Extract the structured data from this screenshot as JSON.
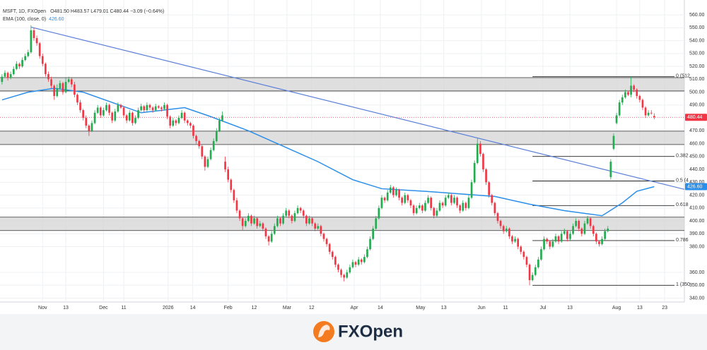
{
  "chart_data": {
    "type": "candlestick",
    "title": "MSFT, 1D, FXOpen",
    "ohlc_text": "O481.50  H483.57  L479.01  C480.44  −3.09 (−0.64%)",
    "up_color": "#22ab4f",
    "down_color": "#f23645",
    "open": [
      508,
      512,
      515,
      511,
      514,
      518,
      522,
      520,
      525,
      528,
      531,
      548,
      542,
      538,
      528,
      522,
      514,
      510,
      505,
      497,
      503,
      507,
      500,
      508,
      510,
      506,
      498,
      492,
      486,
      480,
      474,
      470,
      476,
      484,
      488,
      482,
      486,
      490,
      484,
      478,
      485,
      490,
      488,
      482,
      478,
      484,
      476,
      480,
      486,
      489,
      486,
      490,
      488,
      486,
      489,
      488,
      487,
      490,
      481,
      474,
      478,
      476,
      480,
      484,
      478,
      476,
      474,
      466,
      462,
      458,
      450,
      442,
      448,
      455,
      462,
      470,
      478,
      446,
      440,
      432,
      424,
      416,
      408,
      402,
      396,
      400,
      404,
      398,
      402,
      396,
      398,
      394,
      388,
      384,
      390,
      396,
      402,
      398,
      404,
      408,
      404,
      400,
      406,
      410,
      408,
      404,
      398,
      402,
      398,
      394,
      396,
      390,
      386,
      382,
      376,
      372,
      366,
      362,
      358,
      356,
      360,
      364,
      368,
      366,
      370,
      368,
      372,
      378,
      386,
      394,
      402,
      410,
      418,
      416,
      422,
      426,
      420,
      424,
      418,
      414,
      420,
      416,
      412,
      406,
      410,
      412,
      408,
      414,
      418,
      410,
      404,
      408,
      414,
      412,
      418,
      420,
      414,
      418,
      412,
      408,
      414,
      410,
      418,
      430,
      445,
      460,
      452,
      440,
      430,
      420,
      414,
      406,
      400,
      396,
      392,
      394,
      388,
      384,
      386,
      380,
      376,
      372,
      366,
      354,
      358,
      364,
      370,
      378,
      386,
      384,
      380,
      384,
      388,
      384,
      390,
      392,
      386,
      390,
      396,
      400,
      394,
      390,
      398,
      402,
      396,
      390,
      384,
      382,
      386,
      392,
      434,
      456,
      476,
      482,
      492,
      496,
      500,
      498,
      505,
      502,
      497,
      494,
      488,
      482,
      484,
      481.5
    ],
    "high": [
      514,
      517,
      516,
      516,
      520,
      524,
      523,
      527,
      530,
      533,
      552,
      550,
      544,
      539,
      530,
      523,
      516,
      512,
      506,
      506,
      509,
      508,
      511,
      512,
      511,
      508,
      499,
      494,
      487,
      482,
      475,
      478,
      486,
      490,
      489,
      488,
      492,
      491,
      485,
      487,
      492,
      491,
      489,
      483,
      486,
      485,
      482,
      488,
      491,
      490,
      492,
      491,
      489,
      491,
      490,
      489,
      492,
      491,
      482,
      480,
      479,
      482,
      486,
      485,
      479,
      477,
      475,
      467,
      463,
      459,
      451,
      450,
      457,
      464,
      472,
      480,
      485,
      450,
      442,
      433,
      425,
      418,
      409,
      403,
      402,
      406,
      405,
      404,
      403,
      400,
      399,
      395,
      389,
      392,
      398,
      404,
      403,
      406,
      410,
      409,
      405,
      408,
      412,
      411,
      409,
      405,
      404,
      403,
      399,
      398,
      397,
      391,
      387,
      383,
      377,
      373,
      367,
      363,
      359,
      362,
      366,
      370,
      369,
      372,
      371,
      374,
      380,
      388,
      396,
      404,
      412,
      420,
      419,
      424,
      428,
      427,
      426,
      425,
      419,
      422,
      421,
      417,
      413,
      412,
      414,
      413,
      416,
      420,
      419,
      411,
      410,
      416,
      415,
      420,
      422,
      421,
      420,
      419,
      413,
      416,
      415,
      420,
      432,
      447,
      464,
      462,
      453,
      441,
      431,
      421,
      415,
      407,
      401,
      397,
      396,
      395,
      389,
      388,
      387,
      381,
      377,
      373,
      367,
      360,
      366,
      372,
      380,
      388,
      387,
      385,
      386,
      390,
      389,
      392,
      394,
      393,
      392,
      398,
      402,
      401,
      395,
      400,
      404,
      403,
      397,
      391,
      385,
      388,
      394,
      396,
      448,
      468,
      484,
      494,
      498,
      502,
      501,
      512,
      506,
      503,
      498,
      495,
      489,
      486,
      486,
      483.57
    ],
    "low": [
      506,
      511,
      509,
      510,
      513,
      517,
      518,
      519,
      524,
      527,
      530,
      540,
      536,
      526,
      520,
      512,
      508,
      503,
      494,
      496,
      502,
      498,
      499,
      507,
      504,
      496,
      490,
      484,
      478,
      472,
      466,
      469,
      475,
      483,
      480,
      481,
      485,
      482,
      476,
      477,
      484,
      487,
      480,
      476,
      477,
      474,
      475,
      479,
      485,
      484,
      485,
      486,
      484,
      485,
      487,
      485,
      486,
      479,
      472,
      473,
      474,
      475,
      479,
      476,
      474,
      472,
      464,
      460,
      456,
      448,
      439,
      441,
      447,
      454,
      461,
      469,
      477,
      438,
      430,
      422,
      414,
      406,
      400,
      393,
      395,
      399,
      396,
      397,
      394,
      395,
      392,
      386,
      381,
      383,
      389,
      395,
      396,
      397,
      403,
      402,
      398,
      399,
      405,
      406,
      402,
      396,
      397,
      396,
      392,
      393,
      388,
      384,
      380,
      374,
      370,
      364,
      360,
      356,
      353,
      355,
      359,
      363,
      364,
      365,
      366,
      367,
      371,
      377,
      385,
      393,
      401,
      409,
      414,
      415,
      421,
      418,
      419,
      416,
      412,
      413,
      414,
      410,
      404,
      405,
      409,
      406,
      407,
      413,
      408,
      402,
      403,
      407,
      410,
      411,
      417,
      412,
      413,
      410,
      406,
      407,
      408,
      409,
      417,
      429,
      444,
      450,
      438,
      428,
      418,
      412,
      404,
      398,
      394,
      390,
      391,
      386,
      382,
      383,
      378,
      374,
      370,
      364,
      350,
      353,
      357,
      363,
      369,
      377,
      382,
      378,
      379,
      383,
      382,
      383,
      389,
      384,
      385,
      389,
      395,
      392,
      388,
      389,
      397,
      394,
      388,
      382,
      380,
      381,
      385,
      391,
      432,
      455,
      475,
      481,
      490,
      495,
      497,
      496,
      500,
      495,
      492,
      486,
      480,
      481,
      482.5,
      479.01
    ],
    "close": [
      512,
      515,
      511,
      514,
      518,
      522,
      520,
      525,
      528,
      531,
      548,
      542,
      538,
      528,
      522,
      514,
      510,
      505,
      497,
      503,
      507,
      500,
      508,
      510,
      506,
      498,
      492,
      486,
      480,
      474,
      470,
      476,
      484,
      488,
      482,
      486,
      490,
      484,
      478,
      485,
      490,
      488,
      482,
      478,
      484,
      476,
      480,
      486,
      489,
      486,
      490,
      488,
      486,
      489,
      488,
      487,
      490,
      481,
      474,
      478,
      476,
      480,
      484,
      478,
      476,
      474,
      466,
      462,
      458,
      450,
      442,
      448,
      455,
      462,
      470,
      478,
      482,
      440,
      432,
      424,
      416,
      408,
      402,
      396,
      400,
      404,
      398,
      402,
      396,
      398,
      394,
      388,
      384,
      390,
      396,
      402,
      398,
      404,
      408,
      404,
      400,
      406,
      410,
      408,
      404,
      398,
      402,
      398,
      394,
      396,
      390,
      386,
      382,
      376,
      372,
      366,
      362,
      358,
      356,
      360,
      364,
      368,
      366,
      370,
      368,
      372,
      378,
      386,
      394,
      402,
      410,
      418,
      416,
      422,
      426,
      420,
      424,
      418,
      414,
      420,
      416,
      412,
      406,
      410,
      412,
      408,
      414,
      418,
      410,
      404,
      408,
      414,
      412,
      418,
      420,
      414,
      418,
      412,
      408,
      414,
      410,
      418,
      430,
      445,
      460,
      452,
      440,
      430,
      420,
      414,
      406,
      400,
      396,
      392,
      394,
      388,
      384,
      386,
      380,
      376,
      372,
      366,
      354,
      358,
      364,
      370,
      378,
      386,
      384,
      380,
      384,
      388,
      384,
      390,
      392,
      386,
      390,
      396,
      400,
      394,
      390,
      398,
      402,
      396,
      390,
      384,
      382,
      386,
      392,
      394,
      446,
      466,
      482,
      492,
      496,
      500,
      498,
      505,
      502,
      497,
      494,
      488,
      482,
      484,
      483.53,
      480.44
    ],
    "indicator": {
      "name": "EMA (100, close, 0)",
      "color": "#2b8ee8",
      "last": {
        "value": 426.6,
        "label": "426.60"
      },
      "x": [
        0,
        9,
        18,
        28,
        48,
        63,
        72,
        85,
        97,
        109,
        121,
        131,
        146,
        158,
        170,
        182,
        194,
        207,
        214,
        219,
        225
      ],
      "values": [
        494,
        500,
        503,
        500,
        484,
        488,
        481,
        470,
        458,
        446,
        432,
        425,
        423,
        421,
        419,
        413,
        408,
        404,
        414,
        423,
        426.6
      ]
    },
    "trendline": {
      "color": "#5b7fd8",
      "x": [
        10,
        235.4
      ],
      "values": [
        550.5,
        424.5
      ]
    },
    "last_price": 480.44,
    "zones": [
      {
        "low": 500.9,
        "high": 511.3
      },
      {
        "low": 459.3,
        "high": 469.7
      },
      {
        "low": 392.5,
        "high": 402.9
      }
    ],
    "fib_x": [
      183,
      232
    ],
    "fib_levels": [
      {
        "value": 512,
        "label": "0 (512"
      },
      {
        "value": 450.1,
        "label": "0.382"
      },
      {
        "value": 431,
        "label": "0.5 (4"
      },
      {
        "value": 411.9,
        "label": "0.618"
      },
      {
        "value": 384.7,
        "label": "0.786"
      },
      {
        "value": 350,
        "label": "1 (350"
      }
    ],
    "xlim": [
      -0.7,
      235.4
    ],
    "ylim": [
      337,
      565
    ],
    "grid": true,
    "xticks": [
      {
        "value": 14,
        "label": "Nov"
      },
      {
        "value": 22,
        "label": "13"
      },
      {
        "value": 35,
        "label": "Dec"
      },
      {
        "value": 42,
        "label": "11"
      },
      {
        "value": 57.3,
        "label": "2026"
      },
      {
        "value": 65.8,
        "label": "14"
      },
      {
        "value": 78,
        "label": "Feb"
      },
      {
        "value": 87,
        "label": "12"
      },
      {
        "value": 98.3,
        "label": "Mar"
      },
      {
        "value": 106.8,
        "label": "12"
      },
      {
        "value": 121.5,
        "label": "Apr"
      },
      {
        "value": 130.5,
        "label": "14"
      },
      {
        "value": 144.4,
        "label": "May"
      },
      {
        "value": 152.4,
        "label": "13"
      },
      {
        "value": 165.4,
        "label": "Jun"
      },
      {
        "value": 173.7,
        "label": "11"
      },
      {
        "value": 186.6,
        "label": "Jul"
      },
      {
        "value": 195.9,
        "label": "13"
      },
      {
        "value": 212,
        "label": "Aug"
      },
      {
        "value": 220,
        "label": "13"
      },
      {
        "value": 228.6,
        "label": "23"
      }
    ],
    "yticks": [
      {
        "value": 560,
        "label": "560.00"
      },
      {
        "value": 550,
        "label": "550.00"
      },
      {
        "value": 540,
        "label": "540.00"
      },
      {
        "value": 530,
        "label": "530.00"
      },
      {
        "value": 520,
        "label": "520.00"
      },
      {
        "value": 510,
        "label": "510.00"
      },
      {
        "value": 500,
        "label": "500.00"
      },
      {
        "value": 490,
        "label": "490.00"
      },
      {
        "value": 470,
        "label": "470.00"
      },
      {
        "value": 460,
        "label": "460.00"
      },
      {
        "value": 450,
        "label": "450.00"
      },
      {
        "value": 440,
        "label": "440.00"
      },
      {
        "value": 430,
        "label": "430.00"
      },
      {
        "value": 420,
        "label": "420.00"
      },
      {
        "value": 410,
        "label": "410.00"
      },
      {
        "value": 400,
        "label": "400.00"
      },
      {
        "value": 390,
        "label": "390.00"
      },
      {
        "value": 380,
        "label": "380.00"
      },
      {
        "value": 360,
        "label": "360.00"
      },
      {
        "value": 350,
        "label": "350.00"
      },
      {
        "value": 340,
        "label": "340.00"
      }
    ]
  },
  "brand": "FXOpen"
}
